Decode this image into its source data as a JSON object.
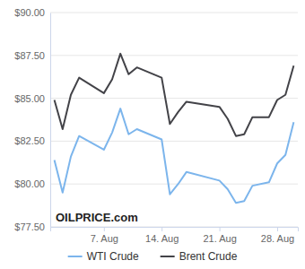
{
  "chart_data": {
    "type": "line",
    "annotations": [
      "OILPRICE.com"
    ],
    "x": [
      1,
      2,
      3,
      4,
      7,
      8,
      9,
      10,
      11,
      14,
      15,
      16,
      17,
      21,
      22,
      23,
      24,
      25,
      27,
      28,
      29,
      30
    ],
    "xlim": [
      0.5,
      30.5
    ],
    "xticks": [
      {
        "value": 7,
        "label": "7. Aug"
      },
      {
        "value": 14,
        "label": "14. Aug"
      },
      {
        "value": 21,
        "label": "21. Aug"
      },
      {
        "value": 28,
        "label": "28. Aug"
      }
    ],
    "ylim": [
      77.5,
      90
    ],
    "yticks": [
      {
        "value": 77.5,
        "label": "$77.50"
      },
      {
        "value": 80,
        "label": "$80.00"
      },
      {
        "value": 82.5,
        "label": "$82.50"
      },
      {
        "value": 85,
        "label": "$85.00"
      },
      {
        "value": 87.5,
        "label": "$87.50"
      },
      {
        "value": 90,
        "label": "$90.00"
      }
    ],
    "grid": true,
    "legend": "bottom",
    "series": [
      {
        "name": "WTI Crude",
        "color": "#7cb5ec",
        "values": [
          81.4,
          79.5,
          81.6,
          82.8,
          82.0,
          83.0,
          84.4,
          82.9,
          83.2,
          82.6,
          79.4,
          80.0,
          80.7,
          80.2,
          79.7,
          78.9,
          79.0,
          79.9,
          80.1,
          81.2,
          81.7,
          83.6
        ]
      },
      {
        "name": "Brent Crude",
        "color": "#434348",
        "values": [
          84.9,
          83.2,
          85.2,
          86.2,
          85.3,
          86.1,
          87.6,
          86.4,
          86.8,
          86.2,
          83.5,
          84.2,
          84.8,
          84.5,
          83.8,
          82.8,
          82.9,
          83.9,
          83.9,
          84.9,
          85.2,
          86.9
        ]
      }
    ]
  }
}
